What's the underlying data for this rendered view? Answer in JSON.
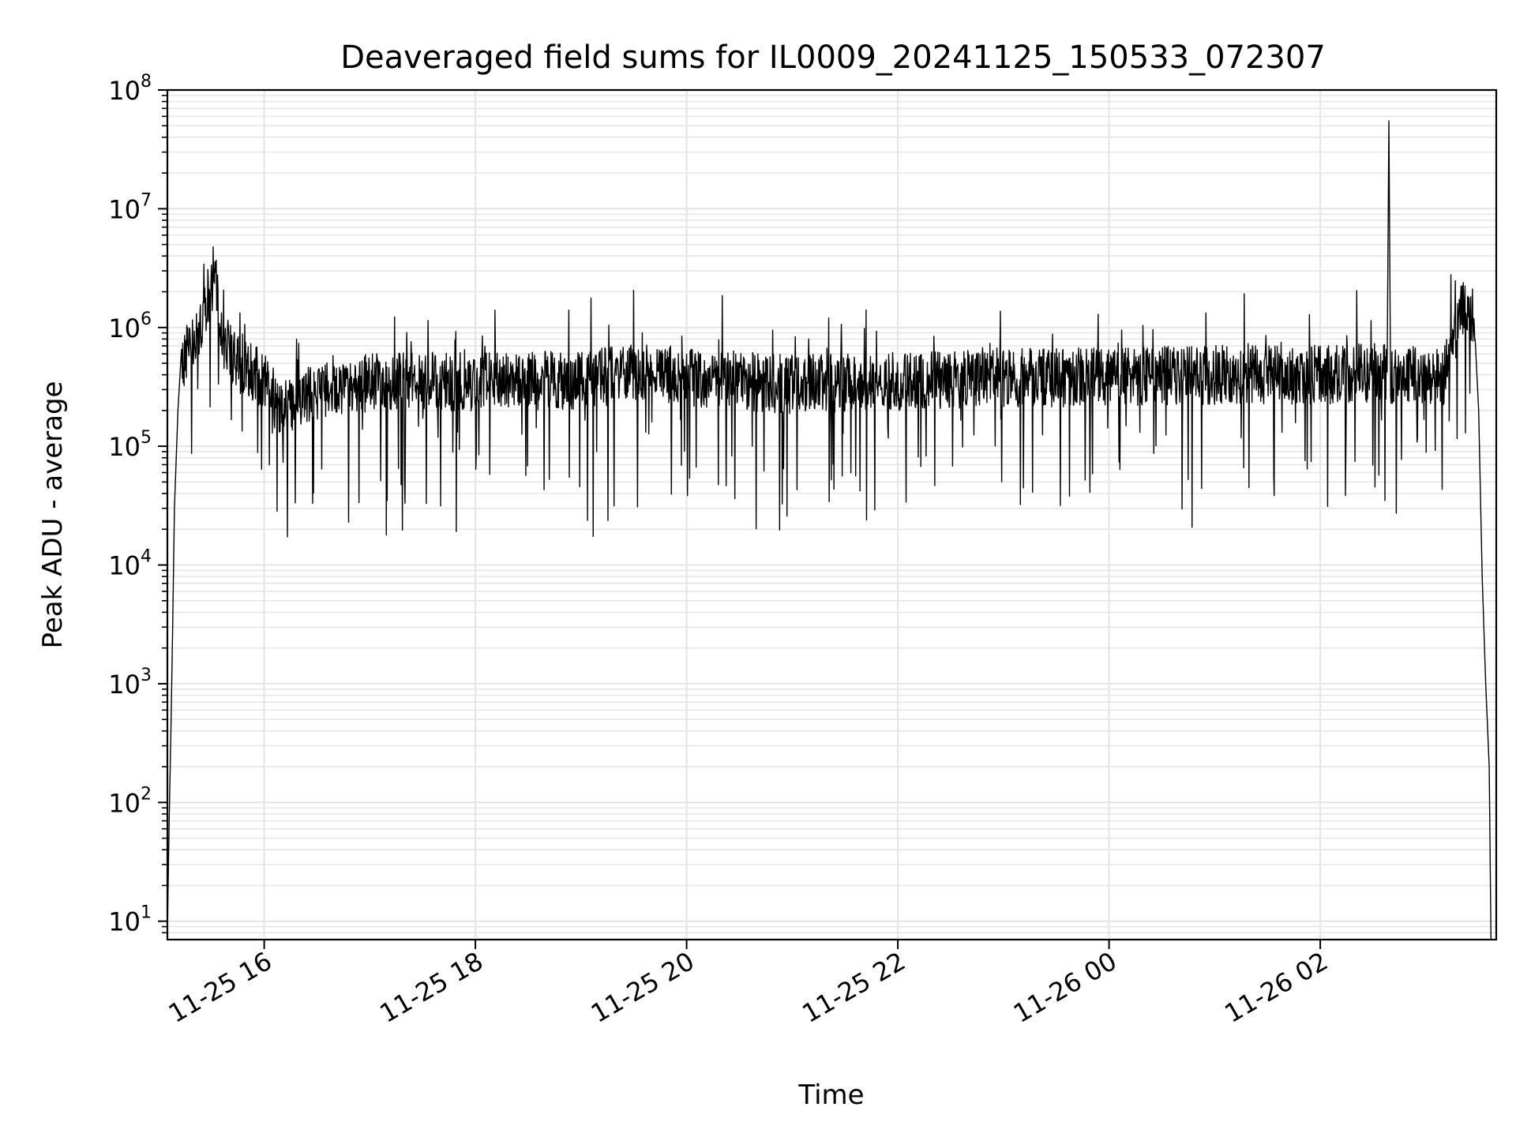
{
  "chart_data": {
    "type": "line",
    "title": "Deaveraged field sums for IL0009_20241125_150533_072307",
    "xlabel": "Time",
    "ylabel": "Peak ADU - average",
    "yscale": "log",
    "ylim": [
      7,
      100000000
    ],
    "xlim": [
      "2024-11-25 15:05",
      "2024-11-26 03:40"
    ],
    "grid": true,
    "line_color": "#000000",
    "grid_color": "#e6e6e6",
    "x_ticks": [
      {
        "label": "11-25 16",
        "value": "2024-11-25 16:00"
      },
      {
        "label": "11-25 18",
        "value": "2024-11-25 18:00"
      },
      {
        "label": "11-25 20",
        "value": "2024-11-25 20:00"
      },
      {
        "label": "11-25 22",
        "value": "2024-11-25 22:00"
      },
      {
        "label": "11-26 00",
        "value": "2024-11-26 00:00"
      },
      {
        "label": "11-26 02",
        "value": "2024-11-26 02:00"
      }
    ],
    "y_ticks": [
      {
        "base": "10",
        "exp": "1",
        "value": 10
      },
      {
        "base": "10",
        "exp": "2",
        "value": 100
      },
      {
        "base": "10",
        "exp": "3",
        "value": 1000
      },
      {
        "base": "10",
        "exp": "4",
        "value": 10000
      },
      {
        "base": "10",
        "exp": "5",
        "value": 100000
      },
      {
        "base": "10",
        "exp": "6",
        "value": 1000000
      },
      {
        "base": "10",
        "exp": "7",
        "value": 10000000
      },
      {
        "base": "10",
        "exp": "8",
        "value": 100000000
      }
    ],
    "series": [
      {
        "values": [
          [
            "2024-11-25 15:05",
            8
          ],
          [
            "2024-11-25 15:06",
            70
          ],
          [
            "2024-11-25 15:07",
            400
          ],
          [
            "2024-11-25 15:08",
            3000
          ],
          [
            "2024-11-25 15:09",
            30000
          ],
          [
            "2024-11-25 15:11",
            200000
          ],
          [
            "2024-11-25 15:13",
            500000
          ],
          [
            "2024-11-25 15:20",
            800000
          ],
          [
            "2024-11-25 15:27",
            1500000
          ],
          [
            "2024-11-25 15:32",
            3500000
          ],
          [
            "2024-11-25 15:35",
            900000
          ],
          [
            "2024-11-25 15:45",
            500000
          ],
          [
            "2024-11-25 16:00",
            350000
          ],
          [
            "2024-11-25 16:10",
            200000
          ],
          [
            "2024-11-25 16:30",
            300000
          ],
          [
            "2024-11-25 17:00",
            350000
          ],
          [
            "2024-11-25 18:00",
            350000
          ],
          [
            "2024-11-25 19:00",
            360000
          ],
          [
            "2024-11-25 19:40",
            450000
          ],
          [
            "2024-11-25 20:00",
            380000
          ],
          [
            "2024-11-25 21:00",
            330000
          ],
          [
            "2024-11-25 22:00",
            350000
          ],
          [
            "2024-11-25 23:00",
            380000
          ],
          [
            "2024-11-26 00:00",
            380000
          ],
          [
            "2024-11-26 01:00",
            400000
          ],
          [
            "2024-11-26 02:00",
            400000
          ],
          [
            "2024-11-26 02:38",
            420000
          ],
          [
            "2024-11-26 02:39",
            55000000
          ],
          [
            "2024-11-26 02:40",
            400000
          ],
          [
            "2024-11-26 03:10",
            380000
          ],
          [
            "2024-11-26 03:15",
            700000
          ],
          [
            "2024-11-26 03:20",
            1500000
          ],
          [
            "2024-11-26 03:25",
            1100000
          ],
          [
            "2024-11-26 03:28",
            800000
          ],
          [
            "2024-11-26 03:30",
            200000
          ],
          [
            "2024-11-26 03:32",
            8000
          ],
          [
            "2024-11-26 03:34",
            1000
          ],
          [
            "2024-11-26 03:36",
            200
          ],
          [
            "2024-11-26 03:37",
            7
          ]
        ]
      }
    ]
  }
}
